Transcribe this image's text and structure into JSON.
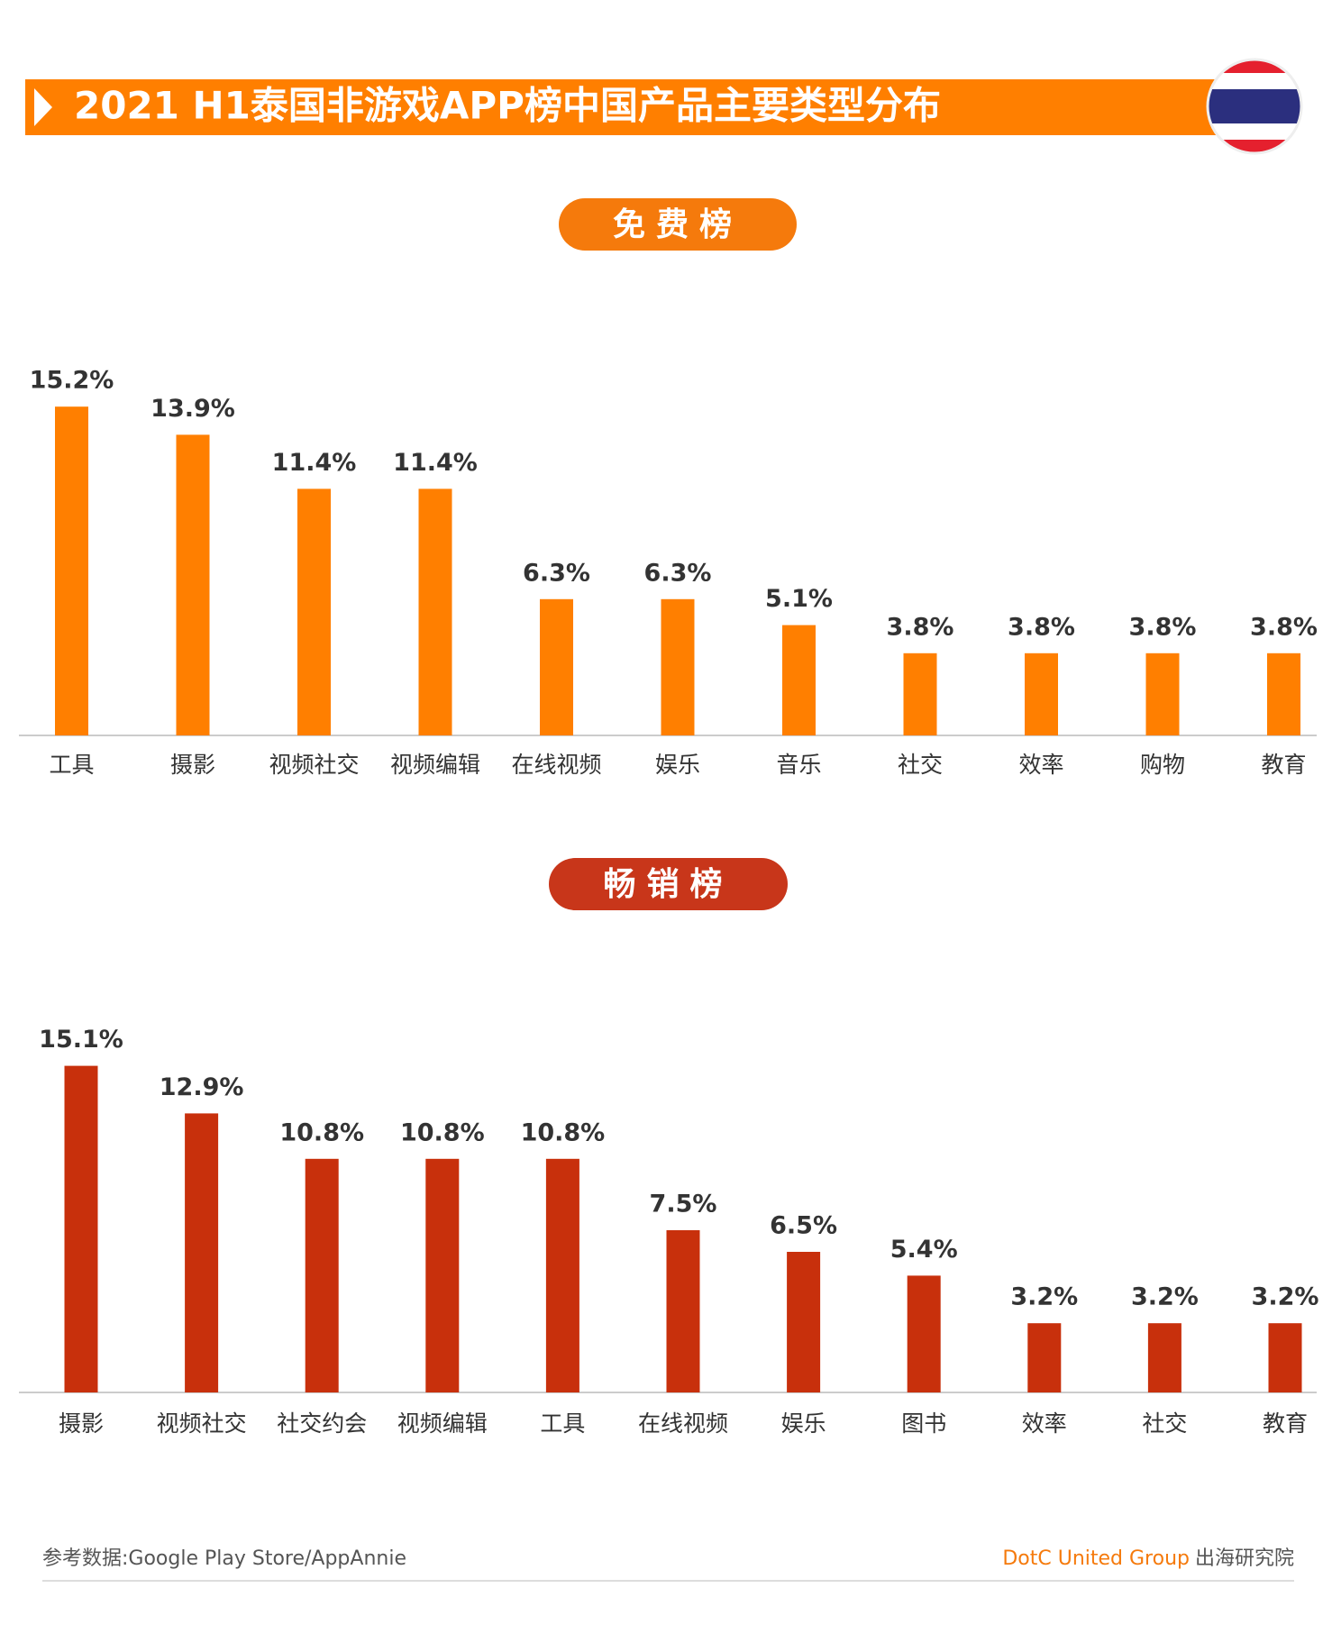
{
  "title": "2021 H1泰国非游戏APP榜中国产品主要类型分布",
  "chart_data": [
    {
      "type": "bar",
      "title": "免费榜",
      "categories": [
        "工具",
        "摄影",
        "视频社交",
        "视频编辑",
        "在线视频",
        "娱乐",
        "音乐",
        "社交",
        "效率",
        "购物",
        "教育"
      ],
      "values": [
        15.2,
        13.9,
        11.4,
        11.4,
        6.3,
        6.3,
        5.1,
        3.8,
        3.8,
        3.8,
        3.8
      ],
      "value_labels": [
        "15.2%",
        "13.9%",
        "11.4%",
        "11.4%",
        "6.3%",
        "6.3%",
        "5.1%",
        "3.8%",
        "3.8%",
        "3.8%",
        "3.8%"
      ],
      "color": "#ff7f00",
      "title_color": "#f57a0c",
      "ylim": [
        0,
        16
      ]
    },
    {
      "type": "bar",
      "title": "畅销榜",
      "categories": [
        "摄影",
        "视频社交",
        "社交约会",
        "视频编辑",
        "工具",
        "在线视频",
        "娱乐",
        "图书",
        "效率",
        "社交",
        "教育"
      ],
      "values": [
        15.1,
        12.9,
        10.8,
        10.8,
        10.8,
        7.5,
        6.5,
        5.4,
        3.2,
        3.2,
        3.2
      ],
      "value_labels": [
        "15.1%",
        "12.9%",
        "10.8%",
        "10.8%",
        "10.8%",
        "7.5%",
        "6.5%",
        "5.4%",
        "3.2%",
        "3.2%",
        "3.2%"
      ],
      "color": "#c8300c",
      "title_color": "#c8361a",
      "ylim": [
        0,
        16
      ]
    }
  ],
  "footer": {
    "source": "参考数据:Google Play Store/AppAnnie",
    "brand": "DotC United Group",
    "brand_suffix": "出海研究院"
  }
}
